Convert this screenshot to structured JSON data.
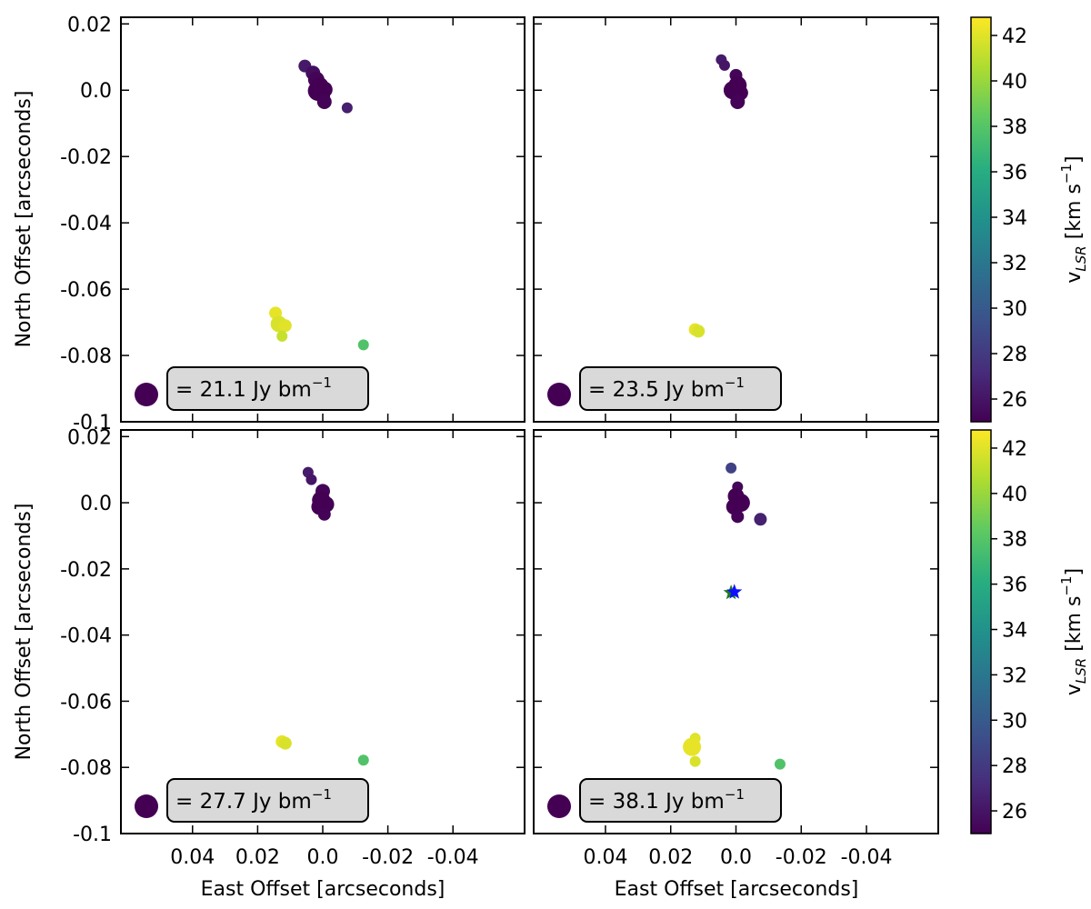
{
  "chart_data": {
    "type": "scatter",
    "xlabel": "East Offset [arcseconds]",
    "ylabel": "North Offset [arcseconds]",
    "x_ticks": [
      0.04,
      0.02,
      0.0,
      -0.02,
      -0.04
    ],
    "x_tick_labels": [
      "0.04",
      "0.02",
      "0.0",
      "-0.02",
      "-0.04"
    ],
    "y_ticks": [
      0.02,
      0.0,
      -0.02,
      -0.04,
      -0.06,
      -0.08,
      -0.1
    ],
    "y_tick_labels": [
      "0.02",
      "0.0",
      "-0.02",
      "-0.04",
      "-0.06",
      "-0.08",
      "-0.1"
    ],
    "xlim": [
      0.062,
      -0.062
    ],
    "ylim": [
      -0.1,
      0.022
    ],
    "colorbar": {
      "label_main": "v",
      "label_sub": "LSR",
      "label_unit": " [km s",
      "label_exp": "−1",
      "label_close": "]",
      "range": [
        25,
        42.8
      ],
      "ticks": [
        26,
        28,
        30,
        32,
        34,
        36,
        38,
        40,
        42
      ],
      "tick_labels": [
        "26",
        "28",
        "30",
        "32",
        "34",
        "36",
        "38",
        "40",
        "42"
      ],
      "colormap": "viridis"
    },
    "panels": [
      {
        "legend_text": "= 21.1 Jy bm",
        "legend_exp": "−1",
        "points": [
          {
            "x": 0.0055,
            "y": 0.0073,
            "v": 26.2,
            "size": 7
          },
          {
            "x": 0.003,
            "y": 0.0052,
            "v": 25.6,
            "size": 8
          },
          {
            "x": 0.002,
            "y": 0.0032,
            "v": 25.2,
            "size": 9
          },
          {
            "x": 0.001,
            "y": 0.0012,
            "v": 25.0,
            "size": 10
          },
          {
            "x": 0.0015,
            "y": -0.0002,
            "v": 25.0,
            "size": 11
          },
          {
            "x": -0.0005,
            "y": 0.0002,
            "v": 25.0,
            "size": 9
          },
          {
            "x": 0.0,
            "y": -0.0018,
            "v": 25.0,
            "size": 8
          },
          {
            "x": -0.0005,
            "y": -0.0035,
            "v": 25.1,
            "size": 8
          },
          {
            "x": -0.0075,
            "y": -0.0053,
            "v": 26.5,
            "size": 6
          },
          {
            "x": 0.0145,
            "y": -0.0672,
            "v": 42.2,
            "size": 7
          },
          {
            "x": 0.0135,
            "y": -0.0705,
            "v": 41.8,
            "size": 9
          },
          {
            "x": 0.0115,
            "y": -0.071,
            "v": 42.0,
            "size": 7
          },
          {
            "x": 0.0125,
            "y": -0.0742,
            "v": 41.3,
            "size": 6
          },
          {
            "x": -0.0125,
            "y": -0.0768,
            "v": 37.8,
            "size": 6
          }
        ]
      },
      {
        "legend_text": "= 23.5 Jy bm",
        "legend_exp": "−1",
        "points": [
          {
            "x": 0.0045,
            "y": 0.0092,
            "v": 26.3,
            "size": 6
          },
          {
            "x": 0.0035,
            "y": 0.0075,
            "v": 26.0,
            "size": 6
          },
          {
            "x": 0.0,
            "y": 0.0045,
            "v": 25.2,
            "size": 7
          },
          {
            "x": -0.0005,
            "y": 0.0015,
            "v": 25.0,
            "size": 10
          },
          {
            "x": 0.001,
            "y": 0.0,
            "v": 25.0,
            "size": 10
          },
          {
            "x": -0.0015,
            "y": -0.0008,
            "v": 25.0,
            "size": 8
          },
          {
            "x": -0.0005,
            "y": -0.0035,
            "v": 25.1,
            "size": 8
          },
          {
            "x": 0.0125,
            "y": -0.0722,
            "v": 42.2,
            "size": 7
          },
          {
            "x": 0.0115,
            "y": -0.0727,
            "v": 41.8,
            "size": 7
          }
        ]
      },
      {
        "legend_text": "= 27.7 Jy bm",
        "legend_exp": "−1",
        "points": [
          {
            "x": 0.0045,
            "y": 0.0092,
            "v": 26.3,
            "size": 6
          },
          {
            "x": 0.0035,
            "y": 0.007,
            "v": 26.0,
            "size": 6
          },
          {
            "x": 0.0,
            "y": 0.0035,
            "v": 25.2,
            "size": 8
          },
          {
            "x": 0.0005,
            "y": 0.0008,
            "v": 25.0,
            "size": 10
          },
          {
            "x": -0.001,
            "y": -0.0005,
            "v": 25.0,
            "size": 9
          },
          {
            "x": 0.001,
            "y": -0.0012,
            "v": 25.0,
            "size": 9
          },
          {
            "x": -0.0005,
            "y": -0.0035,
            "v": 25.1,
            "size": 7
          },
          {
            "x": 0.0125,
            "y": -0.0722,
            "v": 42.2,
            "size": 7
          },
          {
            "x": 0.0115,
            "y": -0.0727,
            "v": 41.8,
            "size": 7
          },
          {
            "x": -0.0125,
            "y": -0.0778,
            "v": 37.8,
            "size": 6
          }
        ]
      },
      {
        "legend_text": "= 38.1 Jy bm",
        "legend_exp": "−1",
        "points": [
          {
            "x": 0.0015,
            "y": 0.0105,
            "v": 28.5,
            "size": 6
          },
          {
            "x": -0.0005,
            "y": 0.0048,
            "v": 25.3,
            "size": 6
          },
          {
            "x": 0.0,
            "y": 0.002,
            "v": 25.0,
            "size": 9
          },
          {
            "x": -0.0015,
            "y": 0.0,
            "v": 25.0,
            "size": 10
          },
          {
            "x": 0.0005,
            "y": -0.0012,
            "v": 25.0,
            "size": 9
          },
          {
            "x": -0.0005,
            "y": -0.0042,
            "v": 25.1,
            "size": 7
          },
          {
            "x": -0.0075,
            "y": -0.005,
            "v": 26.6,
            "size": 7
          },
          {
            "x": 0.0125,
            "y": -0.0712,
            "v": 42.0,
            "size": 6
          },
          {
            "x": 0.0135,
            "y": -0.0738,
            "v": 42.2,
            "size": 10
          },
          {
            "x": 0.0125,
            "y": -0.0782,
            "v": 41.8,
            "size": 6
          },
          {
            "x": -0.0135,
            "y": -0.079,
            "v": 37.8,
            "size": 6
          }
        ],
        "stars": [
          {
            "x": 0.0015,
            "y": -0.0272,
            "color": "#1a7a1a"
          },
          {
            "x": 0.0005,
            "y": -0.027,
            "color": "#1010ff"
          }
        ]
      }
    ]
  }
}
